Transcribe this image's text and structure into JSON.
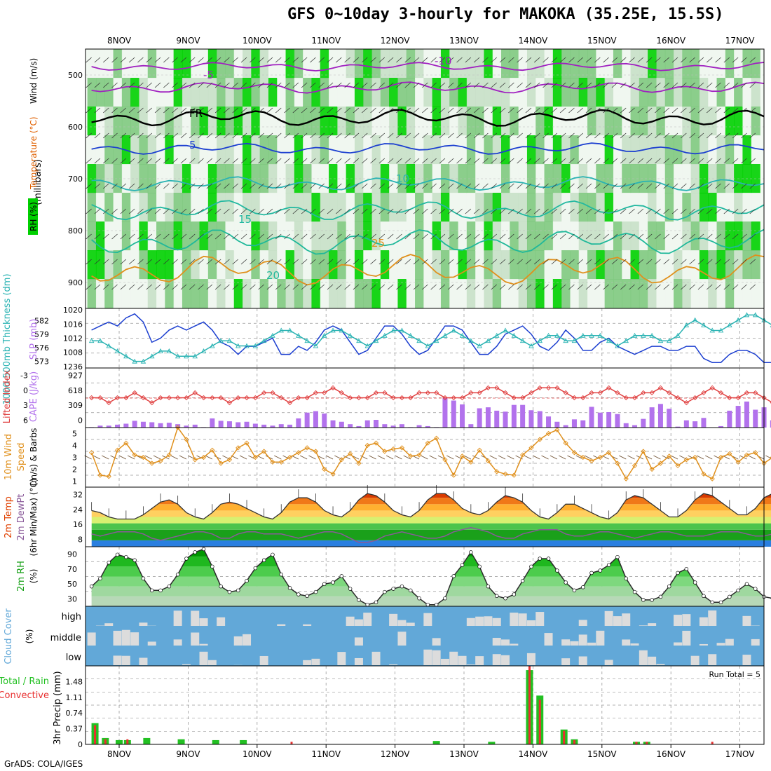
{
  "title": "GFS 0~10day 3-hourly for MAKOKA (35.25E, 15.5S)",
  "footer": "GrADS: COLA/IGES",
  "dates": [
    "8NOV",
    "9NOV",
    "10NOV",
    "11NOV",
    "12NOV",
    "13NOV",
    "14NOV",
    "15NOV",
    "16NOV",
    "17NOV"
  ],
  "colors": {
    "rh_dark": "#00d000",
    "rh_mid": "#7fc97f",
    "rh_light": "#c8e0c8",
    "slp": "#1c3fd0",
    "thickness": "#2ab3b3",
    "lifted": "#e04040",
    "cape": "#b272ec",
    "wind": "#e0901c",
    "temp": "#e04000",
    "dew": "#8a5a9a",
    "rh2m": "#16a016",
    "cloud": "#62a8d8",
    "precip_total": "#22c022",
    "precip_conv": "#e83030"
  },
  "panel_labels": {
    "upper": {
      "rh": "RH (%)",
      "temperature": "Temperature (°C)",
      "wind": "Wind (m/s)",
      "axis": "(millibars)"
    },
    "slp": {
      "left": "1000-500mb Thickness (dm)",
      "right": "SLP (mb)"
    },
    "cape": {
      "left": "Lifted Index",
      "right": "CAPE (J/kg)"
    },
    "wind10": {
      "a": "10m Wind",
      "b": "Speed",
      "c": "(m/s) & Barbs"
    },
    "temp": {
      "a": "2m Temp",
      "b": "2m DewPt",
      "c": "(6hr Min/Max) (°C)"
    },
    "rh": {
      "a": "2m RH",
      "b": "(%)"
    },
    "cloud": {
      "a": "Cloud Cover",
      "b": "(%)",
      "levels": [
        "high",
        "middle",
        "low"
      ]
    },
    "precip": {
      "a": "Total / Rain",
      "b": "Convective",
      "c": "3hr Precip (mm)",
      "run_total": "Run Total = 5"
    }
  },
  "axes": {
    "pressure_ticks": [
      "500",
      "600",
      "700",
      "800",
      "900"
    ],
    "slp_ticks": [
      "1020",
      "1016",
      "1012",
      "1008",
      "1236"
    ],
    "thick_ticks": [
      "582",
      "579",
      "576",
      "573"
    ],
    "li_ticks": [
      "-3",
      "0",
      "3",
      "6"
    ],
    "cape_ticks": [
      "927",
      "618",
      "309",
      "0"
    ],
    "wind_ticks": [
      "5",
      "4",
      "3",
      "2",
      "1"
    ],
    "temp_ticks": [
      "32",
      "24",
      "16",
      "8"
    ],
    "rh_ticks": [
      "90",
      "70",
      "50",
      "30"
    ],
    "precip_ticks": [
      "1.48",
      "1.11",
      "0.74",
      "0.37",
      "0"
    ]
  },
  "contour_labels": [
    {
      "panel": "upper",
      "text": "-10",
      "color": "#a020c0"
    },
    {
      "panel": "upper",
      "text": "-5",
      "color": "#a020c0"
    },
    {
      "panel": "upper",
      "text": "FR",
      "color": "#000000"
    },
    {
      "panel": "upper",
      "text": "5",
      "color": "#1c3fd0"
    },
    {
      "panel": "upper",
      "text": "10",
      "color": "#2ab3b3"
    },
    {
      "panel": "upper",
      "text": "15",
      "color": "#22b8a0"
    },
    {
      "panel": "upper",
      "text": "20",
      "color": "#1fb89a"
    },
    {
      "panel": "upper",
      "text": "25",
      "color": "#e0901c"
    }
  ],
  "chart_data": [
    {
      "type": "line",
      "name": "SLP (mb)",
      "values": [
        1015,
        1016,
        1017,
        1016,
        1018,
        1019,
        1017,
        1012,
        1013,
        1015,
        1016,
        1015,
        1016,
        1017,
        1015,
        1012,
        1011,
        1009,
        1011,
        1011,
        1012,
        1013,
        1009,
        1009,
        1011,
        1010,
        1012,
        1015,
        1016,
        1015,
        1012,
        1009,
        1010,
        1013,
        1016,
        1016,
        1014,
        1011,
        1009,
        1010,
        1013,
        1016,
        1016,
        1015,
        1012,
        1009,
        1009,
        1011,
        1014,
        1015,
        1016,
        1014,
        1011,
        1010,
        1012,
        1015,
        1013,
        1010,
        1010,
        1012,
        1013,
        1011,
        1010,
        1009,
        1010,
        1011,
        1011,
        1010,
        1010,
        1011,
        1011,
        1008,
        1007,
        1007,
        1009,
        1010,
        1010,
        1009,
        1007,
        1007,
        1008,
        1010,
        1011,
        1012
      ]
    },
    {
      "type": "line",
      "name": "1000-500mb Thickness (dm)",
      "values": [
        577,
        577,
        576,
        575,
        574,
        573,
        573,
        574,
        575,
        575,
        574,
        574,
        574,
        575,
        576,
        577,
        577,
        576,
        576,
        576,
        577,
        578,
        579,
        579,
        578,
        577,
        576,
        578,
        579,
        579,
        578,
        577,
        576,
        577,
        578,
        579,
        579,
        578,
        577,
        576,
        577,
        578,
        579,
        578,
        577,
        576,
        577,
        578,
        579,
        578,
        577,
        576,
        577,
        578,
        578,
        577,
        577,
        578,
        578,
        578,
        577,
        576,
        577,
        578,
        578,
        578,
        577,
        577,
        578,
        580,
        581,
        580,
        579,
        579,
        580,
        581,
        582,
        582,
        581,
        580,
        579,
        580,
        581,
        581
      ]
    },
    {
      "type": "line",
      "name": "Lifted Index",
      "values": [
        0,
        0,
        1,
        0,
        0,
        -1,
        0,
        1,
        0,
        0,
        0,
        0,
        -1,
        0,
        0,
        0,
        1,
        0,
        0,
        0,
        -1,
        -1,
        0,
        1,
        0,
        0,
        -1,
        -1,
        -2,
        -1,
        0,
        0,
        0,
        -1,
        -1,
        0,
        0,
        0,
        -1,
        -1,
        -1,
        0,
        0,
        0,
        -1,
        -1,
        -2,
        -2,
        -1,
        0,
        0,
        -1,
        -2,
        -2,
        -2,
        -1,
        0,
        0,
        -1,
        -1,
        -2,
        -1,
        0,
        0,
        -1,
        -1,
        -2,
        -1,
        0,
        1,
        0,
        -1,
        -2,
        -1,
        0,
        0,
        -1,
        -1,
        0,
        1,
        0,
        0,
        -1,
        0
      ]
    },
    {
      "type": "bar",
      "name": "CAPE (J/kg)",
      "values": [
        10,
        40,
        40,
        60,
        80,
        140,
        120,
        110,
        90,
        100,
        70,
        40,
        60,
        10,
        190,
        140,
        130,
        110,
        120,
        80,
        60,
        40,
        70,
        60,
        190,
        310,
        340,
        290,
        150,
        120,
        70,
        30,
        150,
        160,
        70,
        40,
        70,
        10,
        50,
        30,
        10,
        620,
        560,
        480,
        70,
        400,
        420,
        350,
        330,
        470,
        470,
        360,
        340,
        230,
        120,
        50,
        170,
        150,
        430,
        310,
        320,
        280,
        90,
        50,
        180,
        420,
        490,
        390,
        20,
        150,
        130,
        200,
        0,
        30,
        350,
        450,
        540,
        370,
        420,
        150,
        110,
        200,
        310,
        150
      ]
    },
    {
      "type": "line",
      "name": "10m Wind Speed (m/s)",
      "values": [
        3.4,
        1.5,
        1.4,
        3.6,
        4.2,
        3.2,
        3,
        2.5,
        2.7,
        3.2,
        5.5,
        4.5,
        2.8,
        3,
        3.6,
        2.5,
        2.8,
        3.8,
        4.2,
        3,
        3.5,
        2.6,
        2.6,
        3,
        3.4,
        3.8,
        3.5,
        2,
        1.6,
        2.8,
        3.3,
        2.5,
        4,
        4.2,
        3.5,
        3.7,
        3.8,
        3.1,
        3.2,
        4.2,
        4.6,
        2.8,
        1.5,
        3.1,
        2.6,
        3.6,
        2.7,
        1.8,
        1.6,
        1.5,
        3.2,
        3.8,
        4.5,
        5,
        5.3,
        4.2,
        3.4,
        3,
        2.7,
        3,
        3.4,
        2.5,
        1.2,
        2.3,
        3.5,
        2,
        2.5,
        3.1,
        2.3,
        2.8,
        3,
        1.6,
        1.2,
        3,
        3.3,
        2.6,
        3.2,
        3.4,
        2.5,
        3,
        3.5,
        3.2,
        3.8,
        4.2
      ]
    },
    {
      "type": "area",
      "name": "2m Temp (°C)",
      "values": [
        25,
        24,
        22,
        21,
        21,
        21,
        23,
        26,
        29,
        30,
        28,
        24,
        22,
        21,
        24,
        28,
        29,
        28,
        26,
        24,
        22,
        21,
        24,
        29,
        31,
        31,
        29,
        25,
        23,
        22,
        25,
        30,
        33,
        32,
        29,
        25,
        23,
        22,
        25,
        30,
        33,
        33,
        30,
        26,
        24,
        23,
        25,
        29,
        32,
        31,
        29,
        25,
        22,
        21,
        24,
        28,
        28,
        26,
        24,
        22,
        21,
        24,
        30,
        32,
        31,
        28,
        25,
        22,
        22,
        25,
        30,
        33,
        32,
        29,
        26,
        23,
        23,
        26,
        31,
        33,
        32,
        29,
        27,
        28
      ]
    },
    {
      "type": "line",
      "name": "2m DewPt (°C)",
      "values": [
        14,
        13,
        14,
        15,
        15,
        15,
        14,
        12,
        11,
        12,
        13,
        14,
        15,
        15,
        14,
        12,
        12,
        14,
        15,
        15,
        14,
        14,
        14,
        13,
        12,
        13,
        14,
        15,
        15,
        14,
        12,
        10,
        10,
        11,
        13,
        14,
        15,
        14,
        13,
        12,
        12,
        13,
        15,
        16,
        17,
        16,
        15,
        13,
        12,
        12,
        14,
        15,
        16,
        16,
        16,
        14,
        13,
        13,
        14,
        15,
        15,
        14,
        13,
        12,
        13,
        14,
        15,
        15,
        14,
        13,
        13,
        13,
        14,
        15,
        15,
        15,
        14,
        13,
        13,
        14,
        15,
        16,
        16,
        15
      ]
    },
    {
      "type": "area",
      "name": "2m RH (%)",
      "values": [
        45,
        55,
        75,
        85,
        82,
        78,
        55,
        40,
        40,
        45,
        60,
        80,
        88,
        92,
        70,
        45,
        38,
        40,
        52,
        68,
        78,
        85,
        60,
        43,
        35,
        33,
        38,
        48,
        50,
        58,
        42,
        28,
        22,
        25,
        38,
        42,
        45,
        40,
        30,
        22,
        22,
        30,
        58,
        72,
        88,
        70,
        45,
        33,
        30,
        35,
        52,
        70,
        80,
        80,
        65,
        50,
        40,
        44,
        62,
        65,
        72,
        82,
        55,
        38,
        28,
        28,
        32,
        45,
        62,
        67,
        50,
        33,
        25,
        25,
        32,
        40,
        48,
        42,
        32,
        30,
        38,
        52,
        60,
        52
      ]
    },
    {
      "type": "table",
      "name": "3hr Precip (mm)",
      "run_total": "5",
      "bars": [
        {
          "day": 7.65,
          "total": 0.5,
          "conv": 0.45
        },
        {
          "day": 7.8,
          "total": 0.15,
          "conv": 0.12
        },
        {
          "day": 8.0,
          "total": 0.1,
          "conv": 0.0
        },
        {
          "day": 8.12,
          "total": 0.1,
          "conv": 0.12
        },
        {
          "day": 8.4,
          "total": 0.15,
          "conv": 0.0
        },
        {
          "day": 8.9,
          "total": 0.12,
          "conv": 0.0
        },
        {
          "day": 9.4,
          "total": 0.1,
          "conv": 0.0
        },
        {
          "day": 9.8,
          "total": 0.1,
          "conv": 0.0
        },
        {
          "day": 10.5,
          "total": 0.0,
          "conv": 0.06
        },
        {
          "day": 12.6,
          "total": 0.08,
          "conv": 0.0
        },
        {
          "day": 13.4,
          "total": 0.06,
          "conv": 0.0
        },
        {
          "day": 13.95,
          "total": 1.75,
          "conv": 1.85
        },
        {
          "day": 14.1,
          "total": 1.15,
          "conv": 1.05
        },
        {
          "day": 14.45,
          "total": 0.35,
          "conv": 0.32
        },
        {
          "day": 14.6,
          "total": 0.12,
          "conv": 0.1
        },
        {
          "day": 15.5,
          "total": 0.06,
          "conv": 0.06
        },
        {
          "day": 15.65,
          "total": 0.06,
          "conv": 0.06
        },
        {
          "day": 16.6,
          "total": 0.0,
          "conv": 0.06
        }
      ]
    }
  ]
}
